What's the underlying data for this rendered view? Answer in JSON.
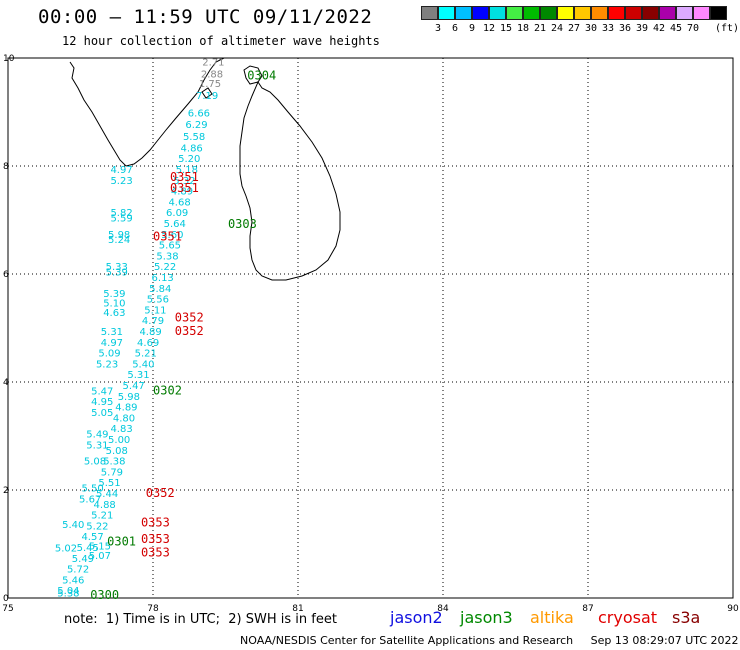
{
  "header": {
    "title": "00:00 – 11:59 UTC 09/11/2022",
    "subtitle": "12 hour collection of altimeter wave heights"
  },
  "scale": {
    "unit": "(ft)",
    "swatches": [
      {
        "color": "#808080",
        "label": ""
      },
      {
        "color": "#00ffff",
        "label": "3"
      },
      {
        "color": "#00bfff",
        "label": "6"
      },
      {
        "color": "#0000ff",
        "label": "9"
      },
      {
        "color": "#00e0e0",
        "label": "12"
      },
      {
        "color": "#44ee44",
        "label": "15"
      },
      {
        "color": "#00bb00",
        "label": "18"
      },
      {
        "color": "#008800",
        "label": "21"
      },
      {
        "color": "#ffff00",
        "label": "24"
      },
      {
        "color": "#ffc800",
        "label": "27"
      },
      {
        "color": "#ff8c00",
        "label": "30"
      },
      {
        "color": "#ff0000",
        "label": "33"
      },
      {
        "color": "#cc0000",
        "label": "36"
      },
      {
        "color": "#880000",
        "label": "39"
      },
      {
        "color": "#aa00aa",
        "label": "42"
      },
      {
        "color": "#ddaaff",
        "label": "45"
      },
      {
        "color": "#ff88ff",
        "label": "70"
      },
      {
        "color": "#000000",
        "label": ""
      }
    ]
  },
  "axes": {
    "x_ticks": [
      "75",
      "78",
      "81",
      "84",
      "87",
      "90"
    ],
    "y_ticks": [
      "0",
      "2",
      "4",
      "6",
      "8",
      "10"
    ],
    "lon_range": [
      75,
      90
    ],
    "lat_range": [
      0,
      10
    ]
  },
  "colors": {
    "cyan": "#00c8dc",
    "gray": "#888888",
    "red": "#d40000",
    "green": "#007a00"
  },
  "wave_heights": [
    {
      "lon": 79.25,
      "lat": 9.86,
      "v": "2.71",
      "c": "gray"
    },
    {
      "lon": 79.22,
      "lat": 9.64,
      "v": "2.88",
      "c": "gray"
    },
    {
      "lon": 79.18,
      "lat": 9.46,
      "v": "1.75",
      "c": "gray"
    },
    {
      "lon": 79.12,
      "lat": 9.24,
      "v": "7.19",
      "c": "cyan"
    },
    {
      "lon": 78.95,
      "lat": 8.92,
      "v": "6.66",
      "c": "cyan"
    },
    {
      "lon": 78.9,
      "lat": 8.7,
      "v": "6.29",
      "c": "cyan"
    },
    {
      "lon": 78.85,
      "lat": 8.48,
      "v": "5.58",
      "c": "cyan"
    },
    {
      "lon": 78.8,
      "lat": 8.27,
      "v": "4.86",
      "c": "cyan"
    },
    {
      "lon": 78.75,
      "lat": 8.07,
      "v": "5.20",
      "c": "cyan"
    },
    {
      "lon": 78.7,
      "lat": 7.87,
      "v": "5.18",
      "c": "cyan"
    },
    {
      "lon": 78.65,
      "lat": 7.67,
      "v": "5.32",
      "c": "cyan"
    },
    {
      "lon": 78.6,
      "lat": 7.47,
      "v": "4.89",
      "c": "cyan"
    },
    {
      "lon": 78.55,
      "lat": 7.27,
      "v": "4.68",
      "c": "cyan"
    },
    {
      "lon": 78.5,
      "lat": 7.07,
      "v": "6.09",
      "c": "cyan"
    },
    {
      "lon": 78.45,
      "lat": 6.87,
      "v": "5.64",
      "c": "cyan"
    },
    {
      "lon": 78.4,
      "lat": 6.67,
      "v": "5.60",
      "c": "cyan"
    },
    {
      "lon": 78.35,
      "lat": 6.47,
      "v": "5.65",
      "c": "cyan"
    },
    {
      "lon": 78.3,
      "lat": 6.27,
      "v": "5.38",
      "c": "cyan"
    },
    {
      "lon": 78.25,
      "lat": 6.07,
      "v": "5.22",
      "c": "cyan"
    },
    {
      "lon": 78.2,
      "lat": 5.87,
      "v": "6.13",
      "c": "cyan"
    },
    {
      "lon": 78.15,
      "lat": 5.67,
      "v": "5.84",
      "c": "cyan"
    },
    {
      "lon": 78.1,
      "lat": 5.47,
      "v": "5.56",
      "c": "cyan"
    },
    {
      "lon": 78.05,
      "lat": 5.27,
      "v": "5.11",
      "c": "cyan"
    },
    {
      "lon": 78.0,
      "lat": 5.07,
      "v": "4.79",
      "c": "cyan"
    },
    {
      "lon": 77.95,
      "lat": 4.87,
      "v": "4.89",
      "c": "cyan"
    },
    {
      "lon": 77.9,
      "lat": 4.67,
      "v": "4.69",
      "c": "cyan"
    },
    {
      "lon": 77.85,
      "lat": 4.47,
      "v": "5.21",
      "c": "cyan"
    },
    {
      "lon": 77.8,
      "lat": 4.27,
      "v": "5.40",
      "c": "cyan"
    },
    {
      "lon": 77.7,
      "lat": 4.07,
      "v": "5.31",
      "c": "cyan"
    },
    {
      "lon": 77.6,
      "lat": 3.87,
      "v": "5.47",
      "c": "cyan"
    },
    {
      "lon": 77.5,
      "lat": 3.67,
      "v": "5.98",
      "c": "cyan"
    },
    {
      "lon": 77.45,
      "lat": 3.47,
      "v": "4.89",
      "c": "cyan"
    },
    {
      "lon": 77.4,
      "lat": 3.27,
      "v": "4.80",
      "c": "cyan"
    },
    {
      "lon": 77.35,
      "lat": 3.07,
      "v": "4.83",
      "c": "cyan"
    },
    {
      "lon": 77.3,
      "lat": 2.87,
      "v": "5.00",
      "c": "cyan"
    },
    {
      "lon": 77.25,
      "lat": 2.67,
      "v": "5.08",
      "c": "cyan"
    },
    {
      "lon": 77.2,
      "lat": 2.47,
      "v": "5.38",
      "c": "cyan"
    },
    {
      "lon": 77.15,
      "lat": 2.27,
      "v": "5.79",
      "c": "cyan"
    },
    {
      "lon": 77.1,
      "lat": 2.07,
      "v": "5.51",
      "c": "cyan"
    },
    {
      "lon": 77.05,
      "lat": 1.87,
      "v": "5.44",
      "c": "cyan"
    },
    {
      "lon": 77.0,
      "lat": 1.67,
      "v": "4.88",
      "c": "cyan"
    },
    {
      "lon": 76.95,
      "lat": 1.47,
      "v": "5.21",
      "c": "cyan"
    },
    {
      "lon": 76.85,
      "lat": 1.27,
      "v": "5.22",
      "c": "cyan"
    },
    {
      "lon": 76.75,
      "lat": 1.07,
      "v": "4.57",
      "c": "cyan"
    },
    {
      "lon": 76.65,
      "lat": 0.87,
      "v": "5.45",
      "c": "cyan"
    },
    {
      "lon": 76.55,
      "lat": 0.67,
      "v": "5.49",
      "c": "cyan"
    },
    {
      "lon": 76.45,
      "lat": 0.47,
      "v": "5.72",
      "c": "cyan"
    },
    {
      "lon": 76.35,
      "lat": 0.27,
      "v": "5.46",
      "c": "cyan"
    },
    {
      "lon": 76.25,
      "lat": 0.07,
      "v": "5.04",
      "c": "cyan"
    },
    {
      "lon": 77.35,
      "lat": 7.87,
      "v": "4.97",
      "c": "cyan"
    },
    {
      "lon": 77.35,
      "lat": 7.67,
      "v": "5.23",
      "c": "cyan"
    },
    {
      "lon": 77.35,
      "lat": 7.07,
      "v": "5.82",
      "c": "cyan"
    },
    {
      "lon": 77.35,
      "lat": 6.97,
      "v": "5.59",
      "c": "cyan"
    },
    {
      "lon": 77.3,
      "lat": 6.67,
      "v": "5.98",
      "c": "cyan"
    },
    {
      "lon": 77.3,
      "lat": 6.57,
      "v": "5.24",
      "c": "cyan"
    },
    {
      "lon": 77.25,
      "lat": 6.07,
      "v": "5.33",
      "c": "cyan"
    },
    {
      "lon": 77.25,
      "lat": 5.97,
      "v": "5.39",
      "c": "cyan"
    },
    {
      "lon": 77.2,
      "lat": 5.57,
      "v": "5.39",
      "c": "cyan"
    },
    {
      "lon": 77.2,
      "lat": 5.4,
      "v": "5.10",
      "c": "cyan"
    },
    {
      "lon": 77.2,
      "lat": 5.22,
      "v": "4.63",
      "c": "cyan"
    },
    {
      "lon": 77.15,
      "lat": 4.87,
      "v": "5.31",
      "c": "cyan"
    },
    {
      "lon": 77.15,
      "lat": 4.67,
      "v": "4.97",
      "c": "cyan"
    },
    {
      "lon": 77.1,
      "lat": 4.47,
      "v": "5.09",
      "c": "cyan"
    },
    {
      "lon": 77.05,
      "lat": 4.27,
      "v": "5.23",
      "c": "cyan"
    },
    {
      "lon": 76.95,
      "lat": 3.77,
      "v": "5.47",
      "c": "cyan"
    },
    {
      "lon": 76.95,
      "lat": 3.57,
      "v": "4.95",
      "c": "cyan"
    },
    {
      "lon": 76.95,
      "lat": 3.37,
      "v": "5.05",
      "c": "cyan"
    },
    {
      "lon": 76.85,
      "lat": 2.97,
      "v": "5.49",
      "c": "cyan"
    },
    {
      "lon": 76.85,
      "lat": 2.77,
      "v": "5.31",
      "c": "cyan"
    },
    {
      "lon": 76.8,
      "lat": 2.47,
      "v": "5.08",
      "c": "cyan"
    },
    {
      "lon": 76.75,
      "lat": 1.97,
      "v": "5.50",
      "c": "cyan"
    },
    {
      "lon": 76.7,
      "lat": 1.77,
      "v": "5.67",
      "c": "cyan"
    },
    {
      "lon": 76.35,
      "lat": 1.3,
      "v": "5.40",
      "c": "cyan"
    },
    {
      "lon": 76.2,
      "lat": 0.86,
      "v": "5.02",
      "c": "cyan"
    },
    {
      "lon": 76.9,
      "lat": 0.9,
      "v": "5.15",
      "c": "cyan"
    },
    {
      "lon": 76.9,
      "lat": 0.72,
      "v": "5.07",
      "c": "cyan"
    },
    {
      "lon": 76.25,
      "lat": 0.03,
      "v": "5.38",
      "c": "cyan"
    }
  ],
  "passes": [
    {
      "lon": 80.25,
      "lat": 9.6,
      "v": "0304",
      "c": "green"
    },
    {
      "lon": 78.65,
      "lat": 7.72,
      "v": "0351",
      "c": "red"
    },
    {
      "lon": 78.65,
      "lat": 7.52,
      "v": "0351",
      "c": "red"
    },
    {
      "lon": 79.85,
      "lat": 6.85,
      "v": "0303",
      "c": "green"
    },
    {
      "lon": 78.3,
      "lat": 6.62,
      "v": "0351",
      "c": "red"
    },
    {
      "lon": 78.75,
      "lat": 5.12,
      "v": "0352",
      "c": "red"
    },
    {
      "lon": 78.75,
      "lat": 4.87,
      "v": "0352",
      "c": "red"
    },
    {
      "lon": 78.3,
      "lat": 3.77,
      "v": "0302",
      "c": "green"
    },
    {
      "lon": 78.15,
      "lat": 1.87,
      "v": "0352",
      "c": "red"
    },
    {
      "lon": 78.05,
      "lat": 1.32,
      "v": "0353",
      "c": "red"
    },
    {
      "lon": 78.05,
      "lat": 1.02,
      "v": "0353",
      "c": "red"
    },
    {
      "lon": 78.05,
      "lat": 0.77,
      "v": "0353",
      "c": "red"
    },
    {
      "lon": 77.35,
      "lat": 0.97,
      "v": "0301",
      "c": "green"
    },
    {
      "lon": 77.0,
      "lat": -0.02,
      "v": "0300",
      "c": "green"
    }
  ],
  "footer": {
    "note": "note:  1) Time is in UTC;  2) SWH is in feet",
    "credit": "NOAA/NESDIS Center for Satellite Applications and Research     Sep 13 08:29:07 UTC 2022",
    "satellites": [
      {
        "name": "jason2",
        "color": "#1010e0"
      },
      {
        "name": "jason3",
        "color": "#008800"
      },
      {
        "name": "altika",
        "color": "#ff9900"
      },
      {
        "name": "cryosat",
        "color": "#e00000"
      },
      {
        "name": "s3a",
        "color": "#880000"
      }
    ]
  }
}
